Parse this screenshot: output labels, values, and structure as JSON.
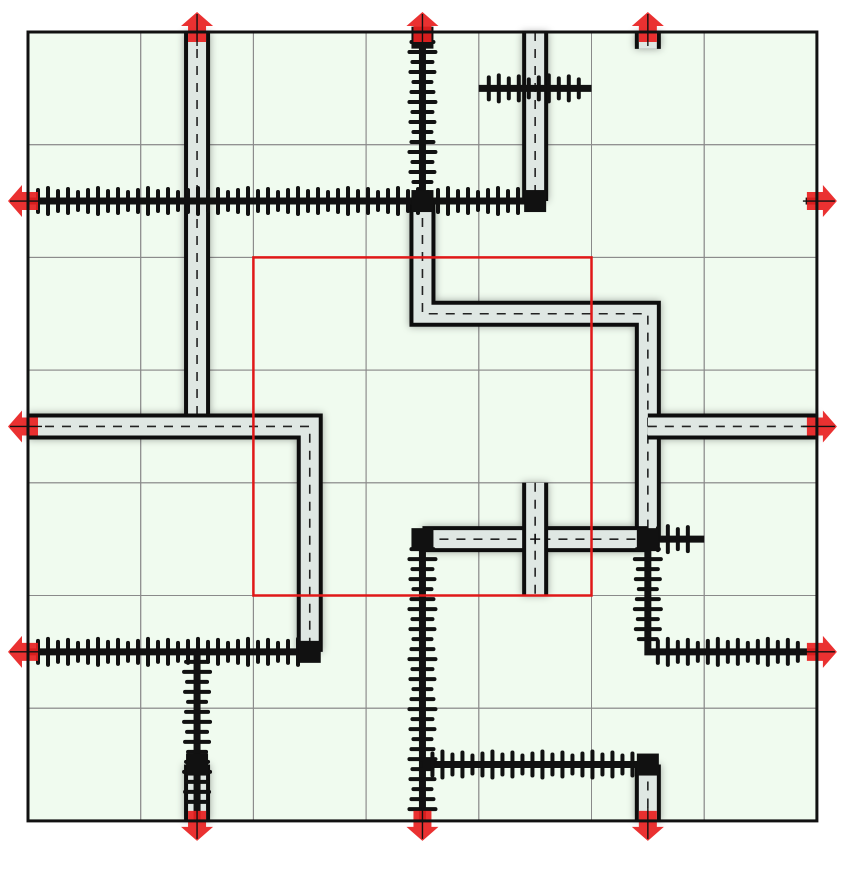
{
  "board": {
    "columns": 7,
    "rows": 7,
    "colors": {
      "background": "#f0fbef",
      "grid": "#8a8a8a",
      "border": "#111111",
      "highlight": "#e01818",
      "arrow": "#e82020",
      "road_fill": "#dfe7e3",
      "road_edge": "#111111",
      "rail": "#111111",
      "station": "#111111"
    },
    "highlight_region": {
      "col_start": 2,
      "row_start": 2,
      "cols": 3,
      "rows": 3
    },
    "exits": [
      {
        "edge": "top",
        "index": 1,
        "kind": "road"
      },
      {
        "edge": "top",
        "index": 3,
        "kind": "rail"
      },
      {
        "edge": "top",
        "index": 5,
        "kind": "road"
      },
      {
        "edge": "left",
        "index": 1,
        "kind": "rail"
      },
      {
        "edge": "left",
        "index": 3,
        "kind": "road"
      },
      {
        "edge": "left",
        "index": 5,
        "kind": "rail"
      },
      {
        "edge": "right",
        "index": 1,
        "kind": "rail"
      },
      {
        "edge": "right",
        "index": 3,
        "kind": "road"
      },
      {
        "edge": "right",
        "index": 5,
        "kind": "rail"
      },
      {
        "edge": "bottom",
        "index": 1,
        "kind": "rail"
      },
      {
        "edge": "bottom",
        "index": 3,
        "kind": "rail"
      },
      {
        "edge": "bottom",
        "index": 5,
        "kind": "road"
      }
    ],
    "roads": [
      {
        "points": [
          [
            1.5,
            0
          ],
          [
            1.5,
            3.5
          ]
        ]
      },
      {
        "points": [
          [
            0,
            3.5
          ],
          [
            2.5,
            3.5
          ],
          [
            2.5,
            5.5
          ]
        ]
      },
      {
        "points": [
          [
            4.5,
            0
          ],
          [
            4.5,
            1.5
          ]
        ]
      },
      {
        "points": [
          [
            3.5,
            1.5
          ],
          [
            3.5,
            2.5
          ],
          [
            5.5,
            2.5
          ],
          [
            5.5,
            4.5
          ]
        ]
      },
      {
        "points": [
          [
            5.5,
            3.5
          ],
          [
            7,
            3.5
          ]
        ]
      },
      {
        "points": [
          [
            3.5,
            4.5
          ],
          [
            5.5,
            4.5
          ]
        ]
      },
      {
        "points": [
          [
            4.5,
            4.0
          ],
          [
            4.5,
            5.0
          ]
        ]
      },
      {
        "points": [
          [
            1.5,
            6.5
          ],
          [
            1.5,
            7
          ]
        ]
      },
      {
        "points": [
          [
            5.5,
            6.5
          ],
          [
            5.5,
            7
          ]
        ]
      },
      {
        "points": [
          [
            5.5,
            0
          ],
          [
            5.5,
            0.15
          ]
        ]
      }
    ],
    "rails": [
      {
        "points": [
          [
            0,
            1.5
          ],
          [
            4.5,
            1.5
          ]
        ]
      },
      {
        "points": [
          [
            3.5,
            0
          ],
          [
            3.5,
            1.5
          ]
        ]
      },
      {
        "points": [
          [
            4.0,
            0.5
          ],
          [
            5.0,
            0.5
          ]
        ]
      },
      {
        "points": [
          [
            0,
            5.5
          ],
          [
            2.5,
            5.5
          ]
        ]
      },
      {
        "points": [
          [
            1.5,
            5.5
          ],
          [
            1.5,
            7
          ]
        ]
      },
      {
        "points": [
          [
            3.5,
            4.5
          ],
          [
            3.5,
            7
          ]
        ]
      },
      {
        "points": [
          [
            3.5,
            6.5
          ],
          [
            5.5,
            6.5
          ]
        ]
      },
      {
        "points": [
          [
            5.5,
            4.5
          ],
          [
            5.5,
            5.5
          ],
          [
            7,
            5.5
          ]
        ]
      },
      {
        "points": [
          [
            5.5,
            4.5
          ],
          [
            6.0,
            4.5
          ]
        ]
      },
      {
        "points": [
          [
            6.9,
            1.5
          ],
          [
            7,
            1.5
          ]
        ]
      }
    ],
    "stations": [
      [
        3.5,
        0.05
      ],
      [
        3.5,
        1.5
      ],
      [
        4.5,
        1.5
      ],
      [
        2.5,
        5.5
      ],
      [
        3.5,
        4.5
      ],
      [
        5.5,
        4.5
      ],
      [
        1.5,
        6.5
      ],
      [
        5.5,
        6.5
      ]
    ],
    "junction_marks": [
      [
        4.5,
        4.5
      ]
    ]
  }
}
